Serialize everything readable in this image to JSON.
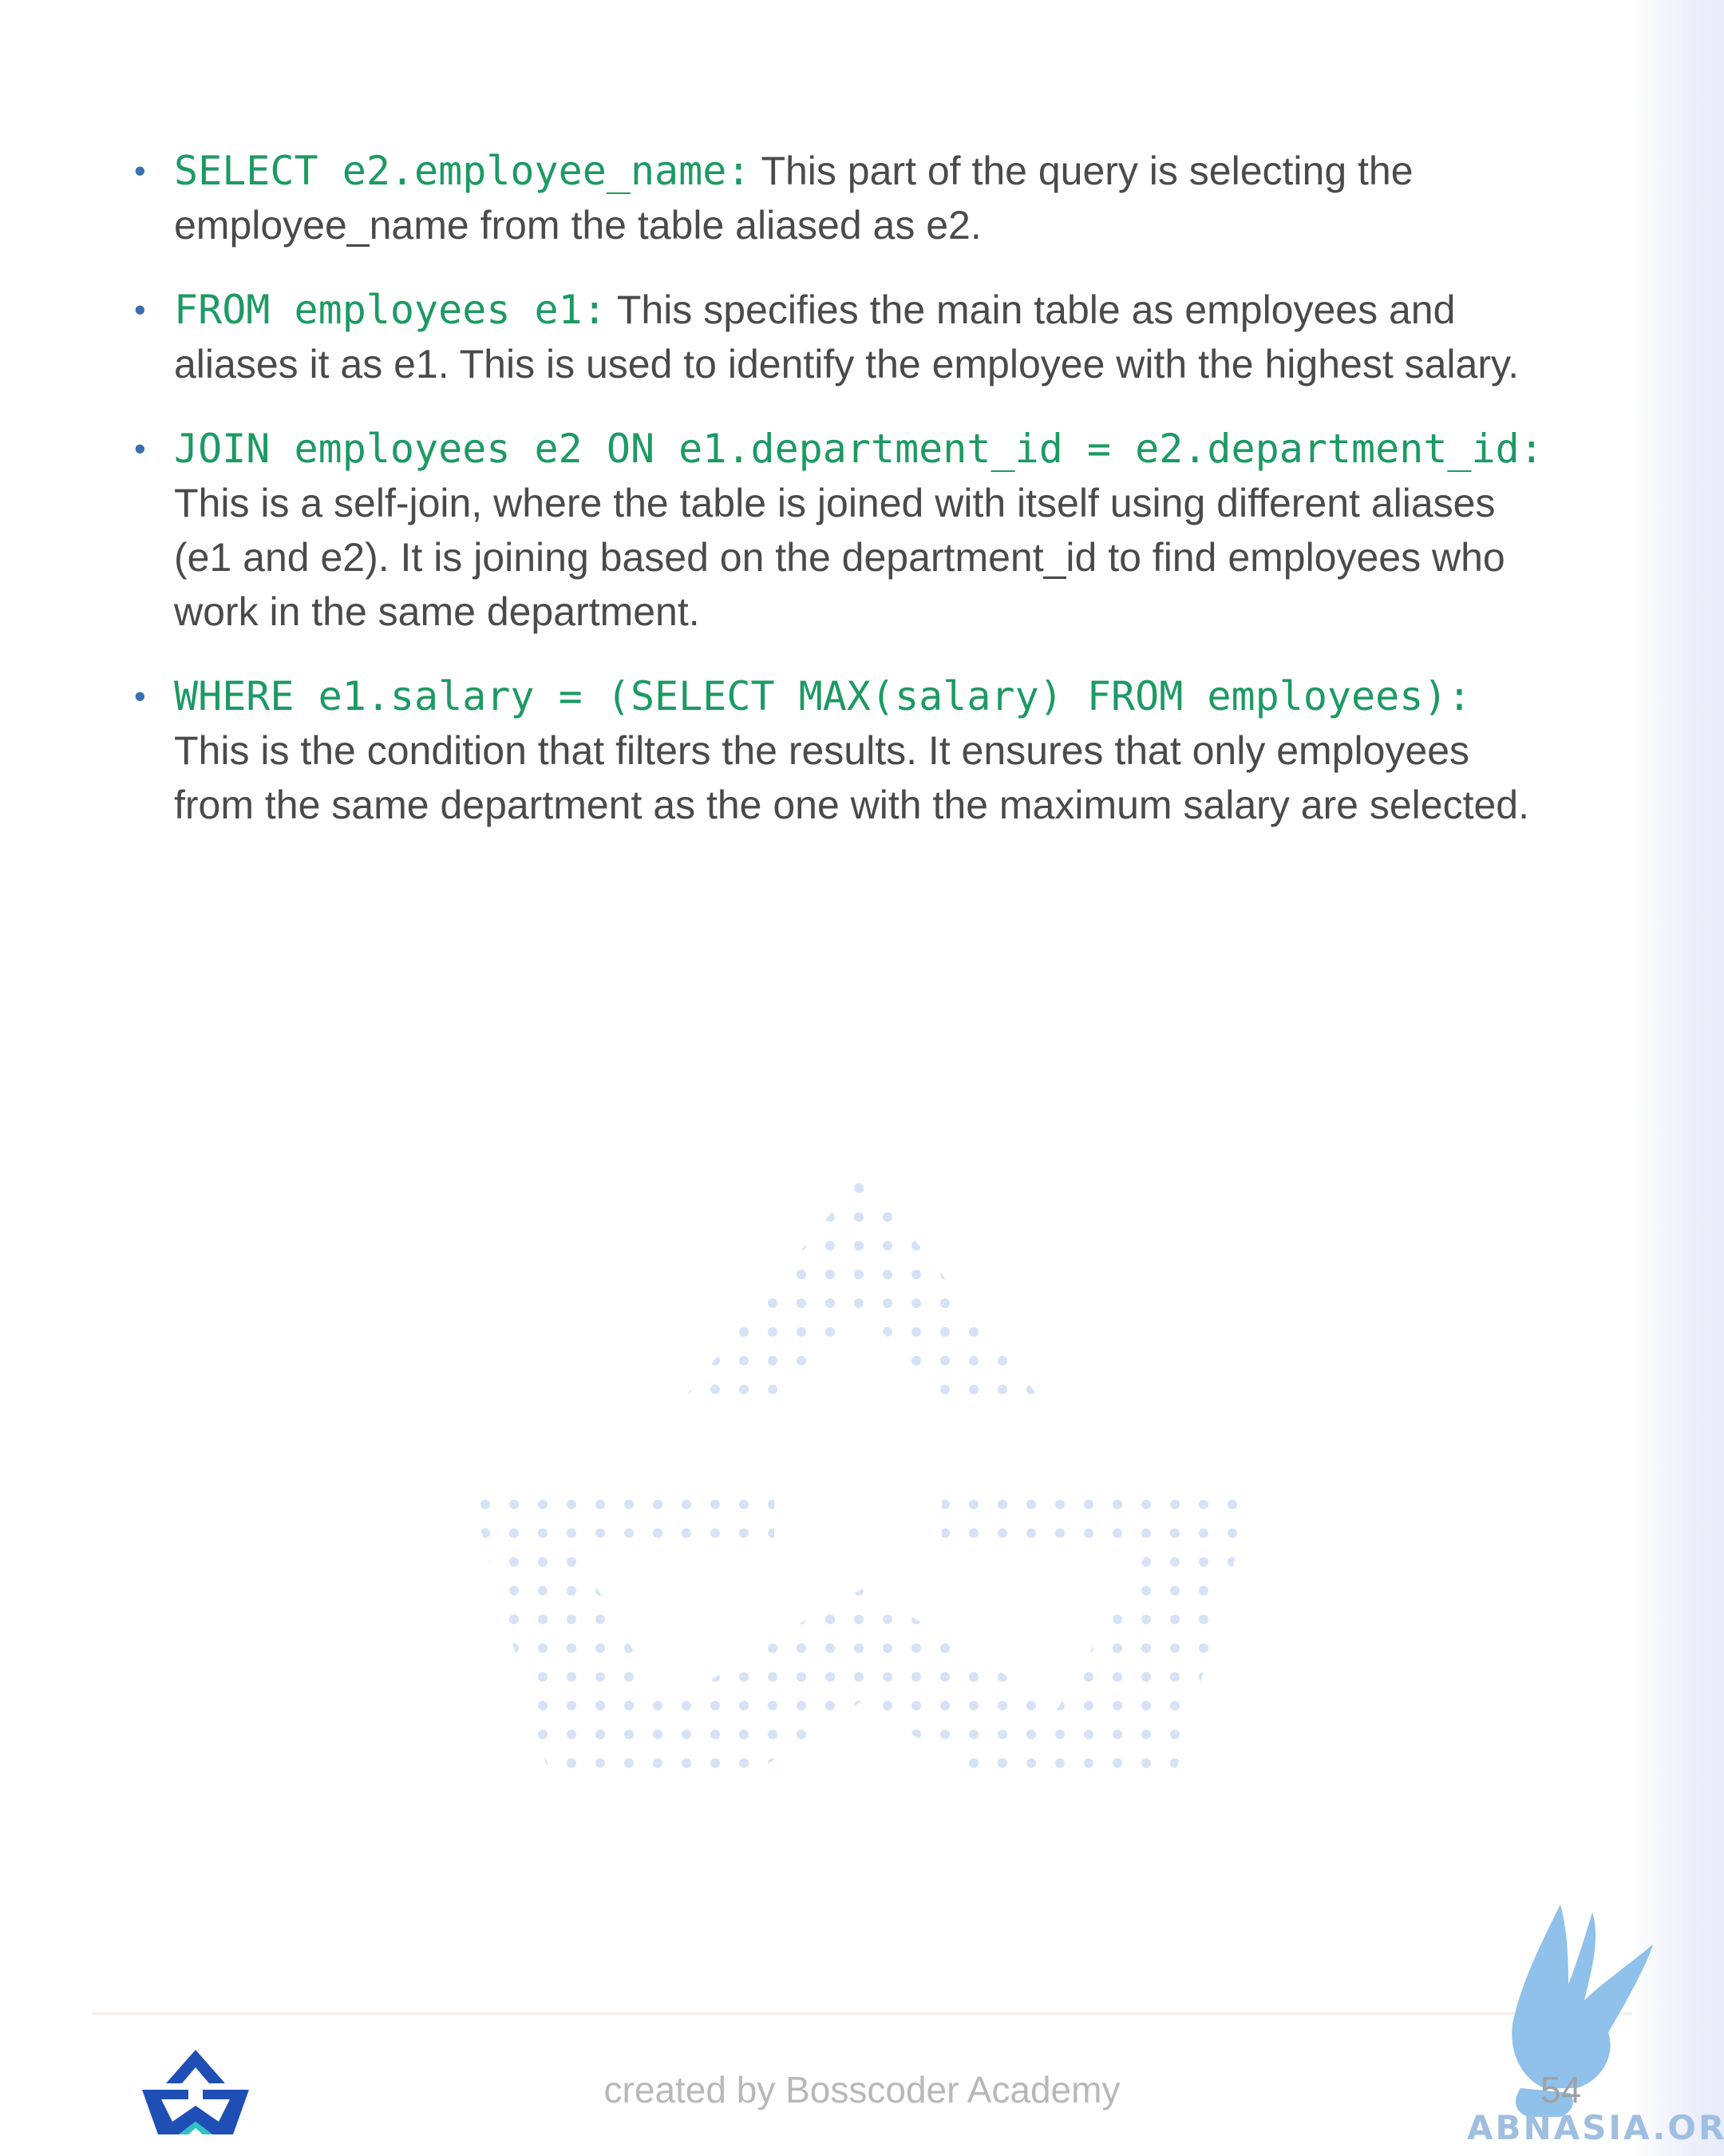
{
  "bullets": [
    {
      "code": "SELECT e2.employee_name:",
      "text": " This part of the query is selecting the employee_name from the table aliased as e2."
    },
    {
      "code": "FROM employees e1:",
      "text": " This specifies the main table as employees and aliases it as e1. This is used to identify the employee with the highest salary."
    },
    {
      "code": "JOIN employees e2 ON e1.department_id = e2.department_id:",
      "text": " This is a self-join, where the table is joined with itself using different aliases (e1 and e2). It is joining based on the department_id to find employees who work in the same department."
    },
    {
      "code": "WHERE e1.salary = (SELECT MAX(salary) FROM employees):",
      "text": " This is the condition that filters the results. It ensures that only employees from the same department as the one with the maximum salary are selected."
    }
  ],
  "footer": {
    "credit": "created by Bosscoder Academy",
    "page_number": "54",
    "stamp_text": "ABNASIA.ORG"
  },
  "colors": {
    "code": "#1d9a63",
    "body_text": "#4a4a4a",
    "bullet": "#3a6fb0",
    "logo_blue": "#1f4fb5",
    "watermark_dots": "#d6e2f5"
  },
  "icons": {
    "bullet": "bullet-dot-icon",
    "brand_logo": "bosscoder-logo-icon",
    "watermark": "bosscoder-watermark-icon",
    "stamp": "griffin-stamp-icon"
  }
}
